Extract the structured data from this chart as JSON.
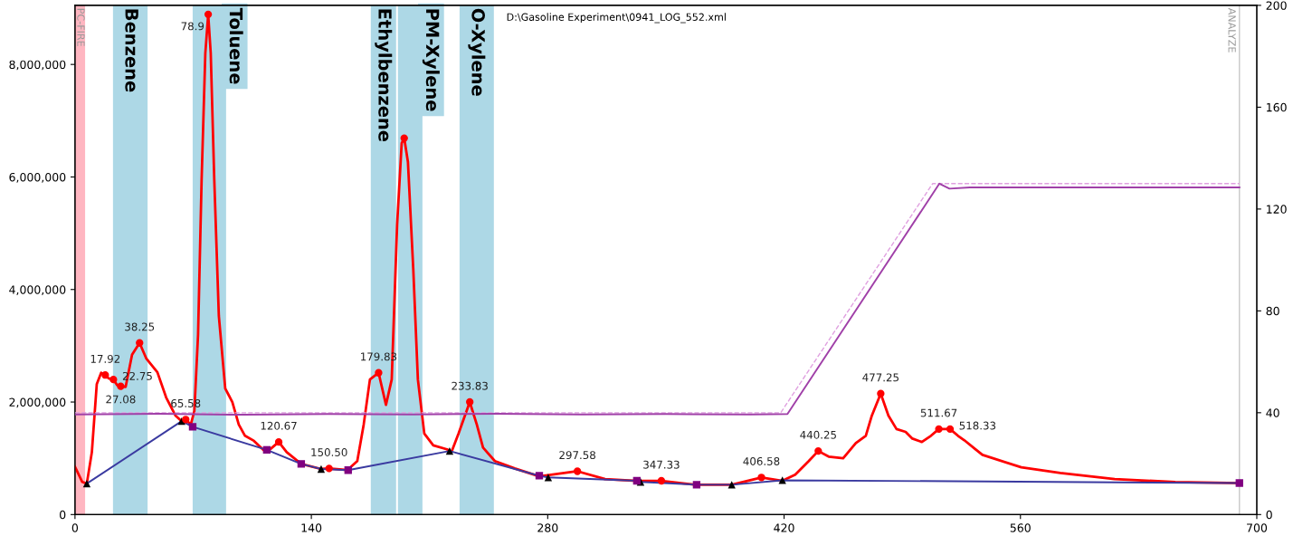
{
  "chart_data": {
    "type": "line",
    "xlim": [
      0,
      700
    ],
    "xticks": [
      0,
      140,
      280,
      420,
      560,
      700
    ],
    "ylim": [
      0,
      9050000
    ],
    "yticks": [
      0,
      {
        "value": 2000000,
        "label": "2,000,000"
      },
      {
        "value": 4000000,
        "label": "4,000,000"
      },
      {
        "value": 6000000,
        "label": "6,000,000"
      },
      {
        "value": 8000000,
        "label": "8,000,000"
      }
    ],
    "y2lim": [
      0,
      200
    ],
    "y2ticks": [
      0,
      40,
      80,
      120,
      160,
      200
    ],
    "grid": false,
    "annotations": [
      "D:\\Gasoline Experiment\\0941_LOG_552.xml",
      {
        "text": "17.92",
        "x": 17.92,
        "y": 2480000
      },
      {
        "text": "22.75",
        "x": 22.75,
        "y": 2400000
      },
      {
        "text": "27.08",
        "x": 27.08,
        "y": 2280000
      },
      {
        "text": "38.25",
        "x": 38.25,
        "y": 3050000
      },
      {
        "text": "65.58",
        "x": 65.58,
        "y": 1690000
      },
      {
        "text": "78.9",
        "x": 78.9,
        "y": 8890000
      },
      {
        "text": "120.67",
        "x": 120.67,
        "y": 1290000
      },
      {
        "text": "150.50",
        "x": 150.5,
        "y": 820000
      },
      {
        "text": "179.83",
        "x": 179.83,
        "y": 2520000
      },
      {
        "text": "233.83",
        "x": 233.83,
        "y": 2000000
      },
      {
        "text": "297.58",
        "x": 297.58,
        "y": 770000
      },
      {
        "text": "347.33",
        "x": 347.33,
        "y": 600000
      },
      {
        "text": "406.58",
        "x": 406.58,
        "y": 660000
      },
      {
        "text": "440.25",
        "x": 440.25,
        "y": 1130000
      },
      {
        "text": "477.25",
        "x": 477.25,
        "y": 2150000
      },
      {
        "text": "511.67",
        "x": 511.67,
        "y": 1520000
      },
      {
        "text": "518.33",
        "x": 518.33,
        "y": 1520000
      }
    ],
    "bands": [
      {
        "axis": "x",
        "from": 0,
        "to": 6,
        "label": "PC-FIRE",
        "color": "#ffb6c1"
      },
      {
        "axis": "x",
        "from": 22.5,
        "to": 43,
        "label": "Benzene",
        "color": "#add8e6"
      },
      {
        "axis": "x",
        "from": 69.7,
        "to": 89.5,
        "label": "Toluene",
        "color": "#add8e6"
      },
      {
        "axis": "x",
        "from": 175.2,
        "to": 190.2,
        "label": "Ethylbenzene",
        "color": "#add8e6"
      },
      {
        "axis": "x",
        "from": 191.3,
        "to": 205.8,
        "label": "PM-Xylene",
        "color": "#add8e6"
      },
      {
        "axis": "x",
        "from": 227.8,
        "to": 248.1,
        "label": "O-Xylene",
        "color": "#add8e6"
      }
    ],
    "ref_lines": [
      {
        "axis": "x",
        "value": 689.7,
        "label": "ANALYZE",
        "color": "#c8c8c8",
        "line_style": "solid"
      }
    ],
    "series": [
      {
        "type": "line",
        "axis": "y2",
        "color": "#e0a0e0",
        "line_style": "dashed",
        "marker": "none",
        "x": [
          0,
          418,
          508,
          689.7
        ],
        "values": [
          40,
          40,
          130,
          130
        ]
      },
      {
        "type": "line",
        "axis": "y2",
        "color": "#a040a8",
        "line_style": "solid",
        "marker": "none",
        "x": [
          0,
          50,
          100,
          150,
          200,
          250,
          300,
          350,
          400,
          422,
          512,
          518,
          530,
          600,
          689.7
        ],
        "values": [
          39.3,
          39.6,
          39.2,
          39.5,
          39.3,
          39.6,
          39.3,
          39.5,
          39.3,
          39.5,
          130,
          128,
          128.5,
          128.5,
          128.5
        ]
      },
      {
        "type": "line",
        "color": "#ff0000",
        "line_style": "solid",
        "marker": "none",
        "x": [
          0,
          4.3,
          7,
          10,
          12.9,
          15.5,
          17.92,
          20,
          22.75,
          25,
          27.08,
          30,
          33.8,
          38.25,
          42.3,
          48.8,
          54,
          59.5,
          63.2,
          65.58,
          68.6,
          70.7,
          72.9,
          75,
          77.2,
          78.9,
          80.4,
          82.5,
          85.2,
          89,
          93.2,
          97,
          100.7,
          106,
          111.5,
          113.6,
          120.67,
          125.4,
          134,
          145.8,
          150.5,
          161.3,
          167.2,
          171,
          174.7,
          179.83,
          184.2,
          187.6,
          190.8,
          193.5,
          195,
          197.2,
          200.4,
          203.1,
          206.9,
          212.2,
          220.3,
          223,
          227.2,
          233.83,
          238,
          241.7,
          248.7,
          260.5,
          275,
          297.58,
          314,
          332.8,
          347.33,
          367.6,
          389,
          406.58,
          419,
          426.6,
          434.6,
          440.25,
          446.4,
          455,
          462.5,
          468.4,
          472,
          477.25,
          481.8,
          486.6,
          492,
          496,
          501.6,
          507,
          511.67,
          518.33,
          523,
          526.8,
          533.8,
          537.5,
          560.5,
          583.6,
          615.8,
          651.7,
          689.7
        ],
        "values": [
          850000,
          580000,
          550000,
          1110000,
          2320000,
          2520000,
          2480000,
          2420000,
          2400000,
          2300000,
          2280000,
          2270000,
          2840000,
          3050000,
          2770000,
          2530000,
          2080000,
          1760000,
          1660000,
          1690000,
          1600000,
          1840000,
          3200000,
          5950000,
          8200000,
          8890000,
          8200000,
          5950000,
          3530000,
          2240000,
          2000000,
          1600000,
          1400000,
          1310000,
          1150000,
          1110000,
          1290000,
          1110000,
          900000,
          810000,
          820000,
          790000,
          950000,
          1600000,
          2400000,
          2520000,
          1950000,
          2400000,
          5150000,
          6600000,
          6690000,
          6270000,
          4340000,
          2400000,
          1440000,
          1230000,
          1160000,
          1110000,
          1440000,
          2000000,
          1600000,
          1190000,
          950000,
          820000,
          680000,
          770000,
          630000,
          600000,
          600000,
          530000,
          530000,
          660000,
          600000,
          710000,
          950000,
          1130000,
          1030000,
          1000000,
          1270000,
          1400000,
          1760000,
          2150000,
          1760000,
          1520000,
          1470000,
          1350000,
          1290000,
          1400000,
          1520000,
          1520000,
          1400000,
          1320000,
          1150000,
          1060000,
          840000,
          740000,
          630000,
          580000,
          560000
        ]
      },
      {
        "type": "line",
        "color": "#3a3aa0",
        "line_style": "solid",
        "marker": "none",
        "x": [
          7,
          63.2,
          69.7,
          113.6,
          134,
          145.8,
          161.8,
          221.9,
          275,
          280.3,
          332.8,
          335,
          368.2,
          389,
          419,
          689.7
        ],
        "values": [
          550000,
          1660000,
          1560000,
          1150000,
          900000,
          810000,
          790000,
          1130000,
          690000,
          660000,
          600000,
          580000,
          530000,
          530000,
          610000,
          560000
        ]
      },
      {
        "type": "scatter",
        "color": "#000000",
        "marker": "triangle",
        "x": [
          7,
          63.2,
          145.8,
          221.9,
          280.3,
          335,
          389,
          419
        ],
        "values": [
          550000,
          1660000,
          810000,
          1130000,
          660000,
          580000,
          530000,
          610000
        ]
      },
      {
        "type": "scatter",
        "color": "#800080",
        "marker": "square",
        "x": [
          69.7,
          113.6,
          134,
          161.8,
          275,
          332.8,
          368.2,
          689.7
        ],
        "values": [
          1560000,
          1150000,
          900000,
          790000,
          690000,
          600000,
          530000,
          560000
        ]
      },
      {
        "type": "scatter",
        "color": "#ff0000",
        "marker": "circle",
        "x": [
          17.92,
          22.75,
          27.08,
          38.25,
          65.58,
          78.9,
          120.67,
          150.5,
          179.83,
          195,
          233.83,
          297.58,
          347.33,
          406.58,
          440.25,
          477.25,
          511.67,
          518.33
        ],
        "values": [
          2480000,
          2400000,
          2280000,
          3050000,
          1690000,
          8890000,
          1290000,
          820000,
          2520000,
          6690000,
          2000000,
          770000,
          600000,
          660000,
          1130000,
          2150000,
          1520000,
          1520000
        ]
      }
    ]
  }
}
